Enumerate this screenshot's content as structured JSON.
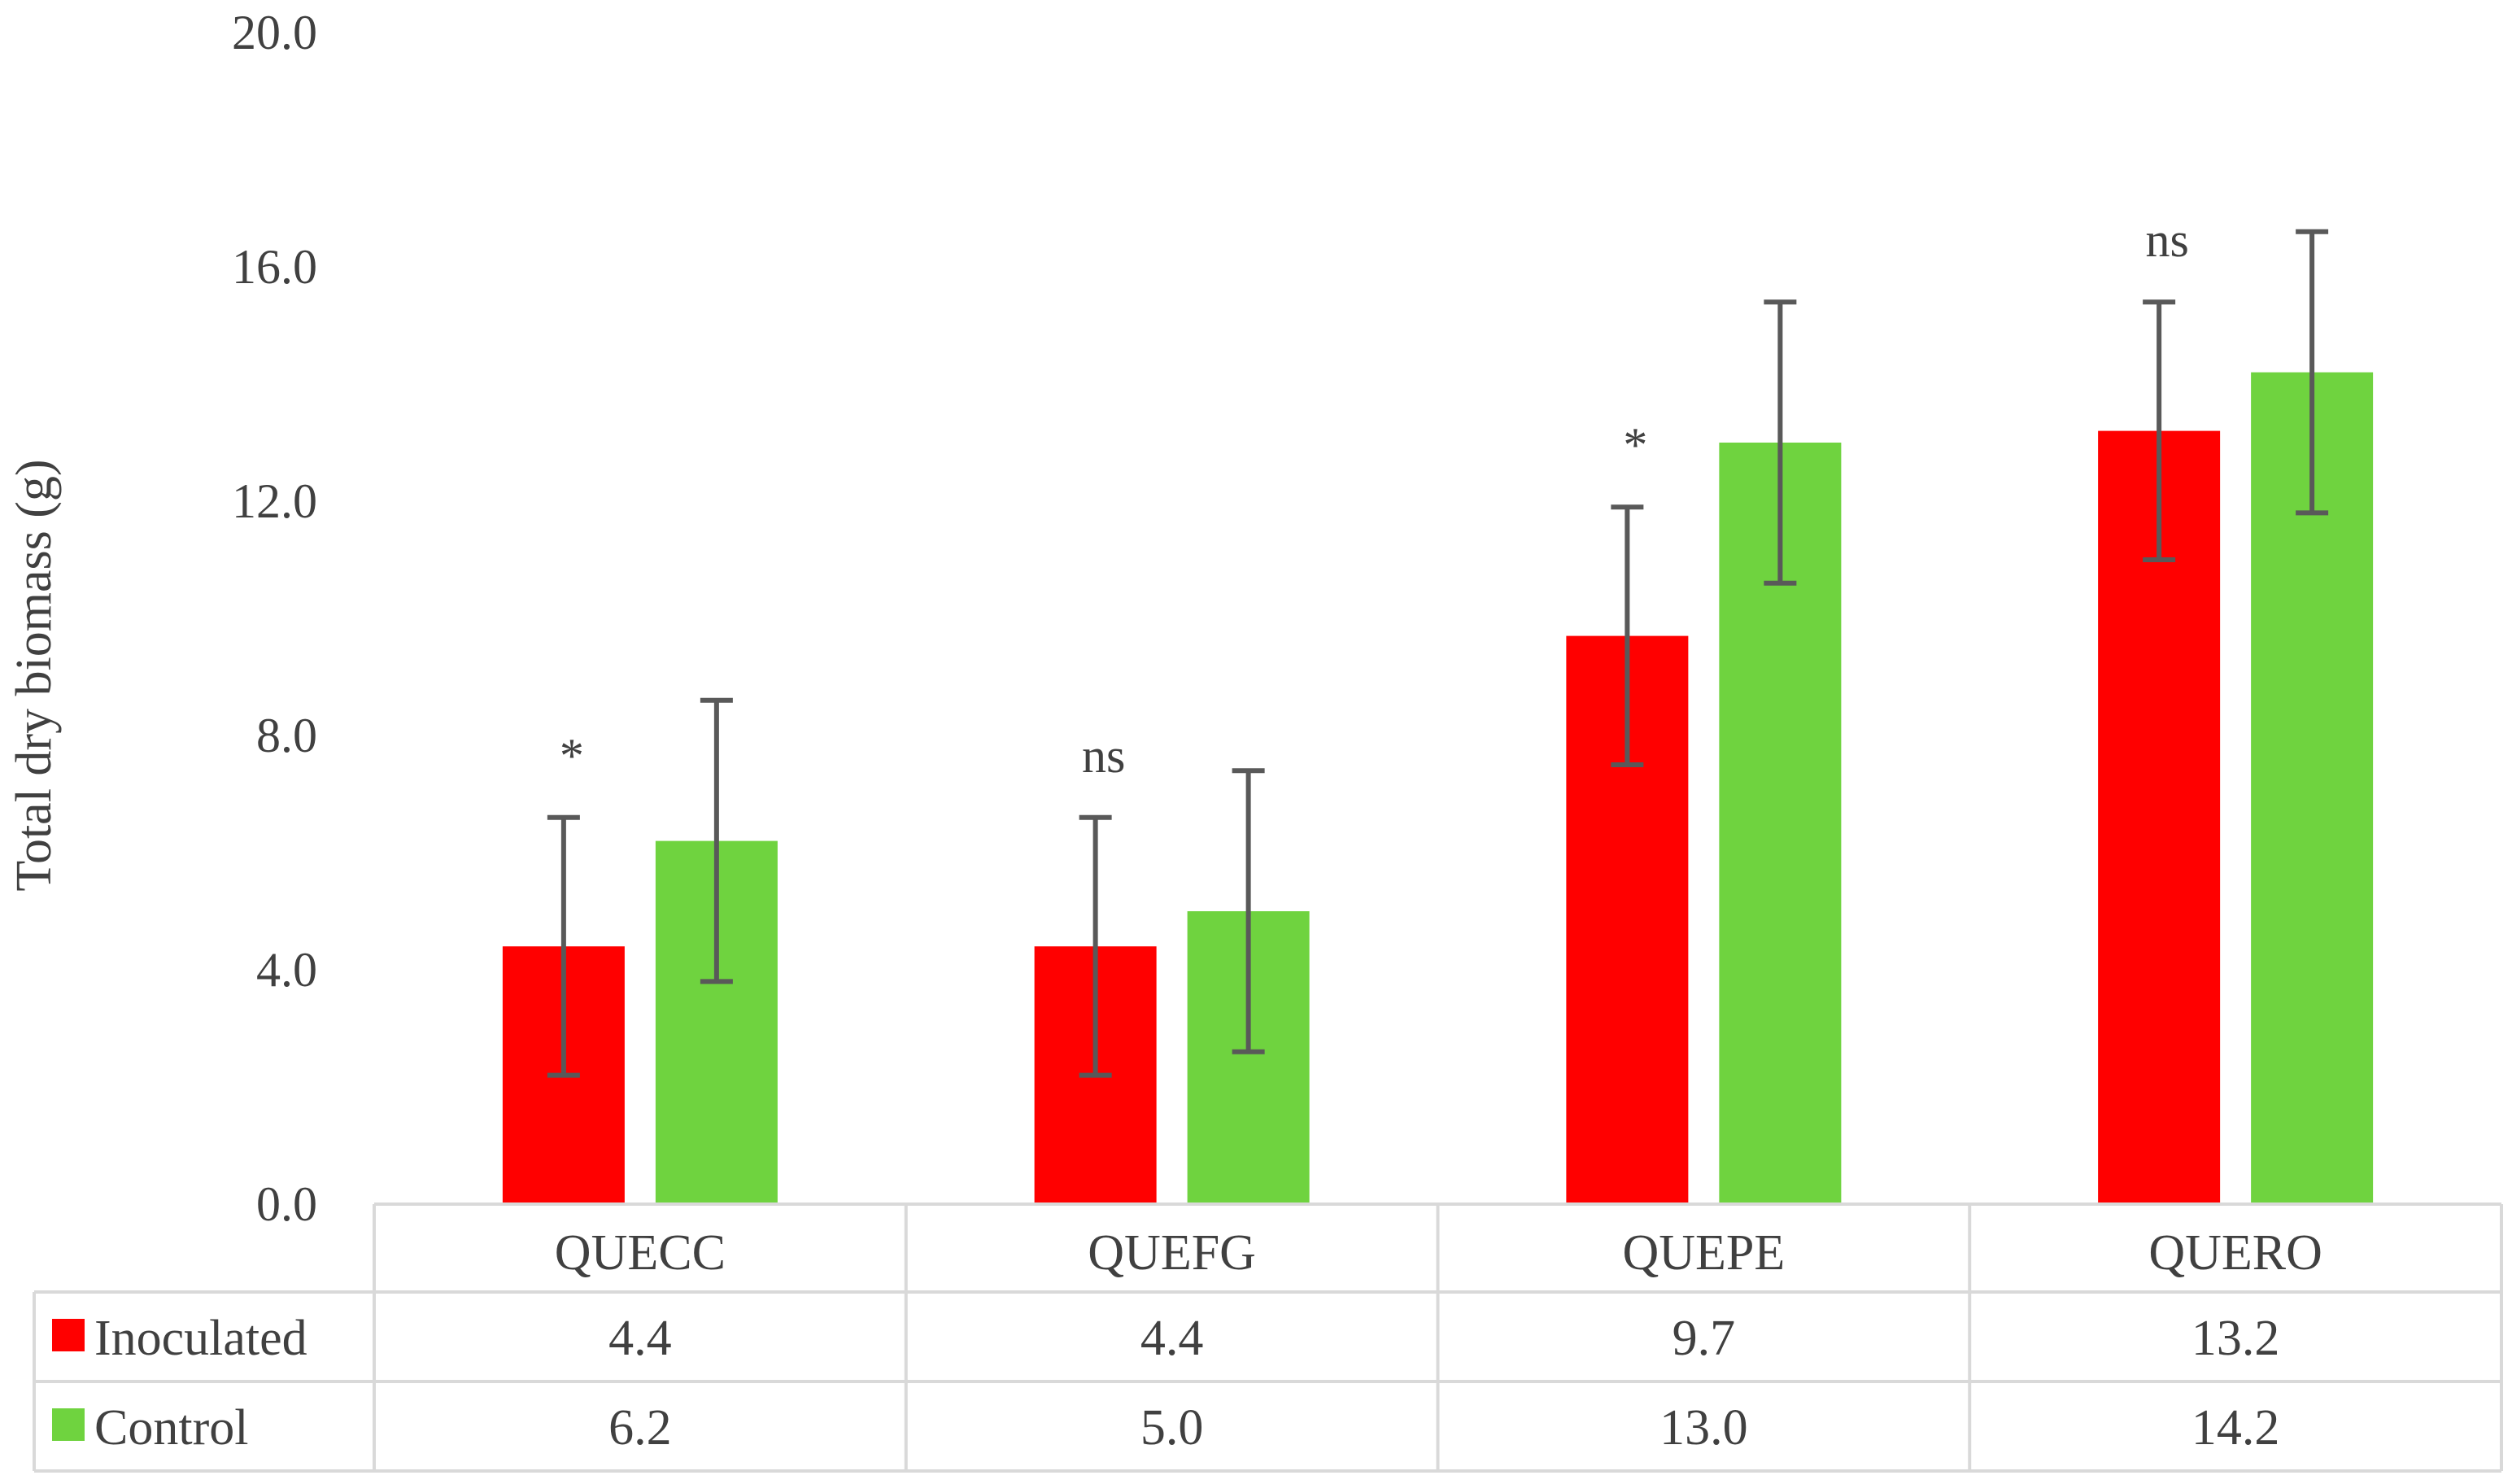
{
  "chart_data": {
    "type": "bar",
    "title": "",
    "xlabel": "",
    "ylabel": "Total dry biomass (g)",
    "ylim": [
      0,
      20
    ],
    "yticks": [
      0,
      4,
      8,
      12,
      16,
      20
    ],
    "ytick_labels": [
      "0.0",
      "4.0",
      "8.0",
      "12.0",
      "16.0",
      "20.0"
    ],
    "grid": false,
    "legend": "data-table-left",
    "categories": [
      "QUECC",
      "QUEFG",
      "QUEPE",
      "QUERO"
    ],
    "series": [
      {
        "name": "Inoculated",
        "color": "#ff0000",
        "values": [
          4.4,
          4.4,
          9.7,
          13.2
        ],
        "value_labels": [
          "4.4",
          "4.4",
          "9.7",
          "13.2"
        ],
        "error": [
          2.2,
          2.2,
          2.2,
          2.2
        ]
      },
      {
        "name": "Control",
        "color": "#6fd33f",
        "values": [
          6.2,
          5.0,
          13.0,
          14.2
        ],
        "value_labels": [
          "6.2",
          "5.0",
          "13.0",
          "14.2"
        ],
        "error": [
          2.4,
          2.4,
          2.4,
          2.4
        ]
      }
    ],
    "annotations": [
      "*",
      "ns",
      "*",
      "ns"
    ],
    "colors": {
      "error_bar": "#595959",
      "text": "#404040",
      "table_border": "#d9d9d9"
    }
  }
}
